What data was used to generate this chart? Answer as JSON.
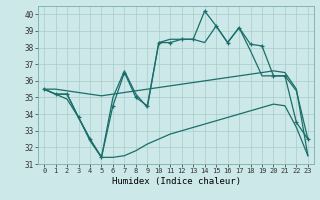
{
  "xlabel": "Humidex (Indice chaleur)",
  "bg_color": "#cce8e8",
  "grid_color": "#aacccc",
  "line_color": "#1a6e6a",
  "xlim": [
    -0.5,
    23.5
  ],
  "ylim": [
    31,
    40.5
  ],
  "yticks": [
    31,
    32,
    33,
    34,
    35,
    36,
    37,
    38,
    39,
    40
  ],
  "xticks": [
    0,
    1,
    2,
    3,
    4,
    5,
    6,
    7,
    8,
    9,
    10,
    11,
    12,
    13,
    14,
    15,
    16,
    17,
    18,
    19,
    20,
    21,
    22,
    23
  ],
  "series1_marked": [
    35.5,
    35.2,
    35.2,
    33.8,
    32.5,
    31.4,
    34.5,
    36.5,
    35.0,
    34.5,
    38.3,
    38.3,
    38.5,
    38.5,
    40.2,
    39.3,
    38.3,
    39.2,
    38.2,
    38.1,
    36.3,
    36.3,
    33.5,
    32.5
  ],
  "series2_line": [
    35.5,
    35.2,
    35.2,
    33.8,
    32.5,
    31.4,
    35.0,
    36.6,
    35.2,
    34.4,
    38.3,
    38.5,
    38.5,
    38.5,
    38.3,
    39.3,
    38.3,
    39.2,
    37.8,
    36.3,
    36.3,
    36.3,
    35.4,
    32.5
  ],
  "series3_diagonal": [
    35.5,
    35.5,
    35.4,
    35.3,
    35.2,
    35.1,
    35.2,
    35.3,
    35.4,
    35.5,
    35.6,
    35.7,
    35.8,
    35.9,
    36.0,
    36.1,
    36.2,
    36.3,
    36.4,
    36.5,
    36.6,
    36.5,
    35.5,
    31.5
  ],
  "series4_low": [
    35.5,
    35.2,
    34.9,
    33.8,
    32.4,
    31.4,
    31.4,
    31.5,
    31.8,
    32.2,
    32.5,
    32.8,
    33.0,
    33.2,
    33.4,
    33.6,
    33.8,
    34.0,
    34.2,
    34.4,
    34.6,
    34.5,
    33.2,
    31.5
  ]
}
